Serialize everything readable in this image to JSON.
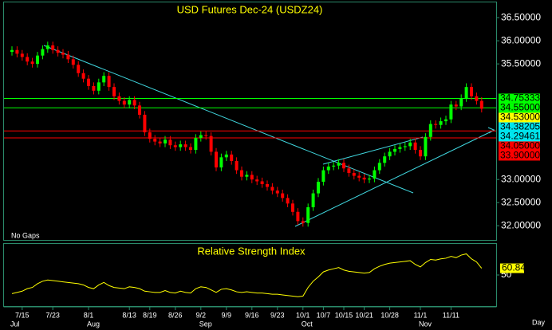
{
  "chart_data": {
    "type": "candlestick",
    "title": "USD Futures Dec-24 (USDZ24)",
    "note": "No Gaps",
    "x_unit": "Day",
    "categories": [
      null,
      null,
      "7/15",
      null,
      null,
      null,
      null,
      null,
      "7/23",
      null,
      null,
      null,
      null,
      null,
      null,
      "8/1",
      null,
      null,
      null,
      null,
      null,
      null,
      null,
      "8/13",
      null,
      null,
      null,
      "8/19",
      null,
      null,
      null,
      null,
      "8/26",
      null,
      null,
      null,
      null,
      "9/2",
      null,
      null,
      null,
      null,
      "9/9",
      null,
      null,
      null,
      null,
      "9/16",
      null,
      null,
      null,
      null,
      "9/23",
      null,
      null,
      null,
      null,
      "10/1",
      null,
      null,
      null,
      "10/7",
      null,
      null,
      null,
      "10/15",
      null,
      null,
      null,
      "10/21",
      null,
      null,
      null,
      null,
      "10/28",
      null,
      null,
      null,
      null,
      null,
      "11/1",
      null,
      null,
      null,
      null,
      null,
      "11/11",
      null,
      null,
      null,
      null,
      null,
      null
    ],
    "month_categories": [
      "Jul",
      null,
      null,
      null,
      null,
      null,
      null,
      null,
      null,
      null,
      null,
      null,
      null,
      null,
      null,
      "Aug",
      null,
      null,
      null,
      null,
      null,
      null,
      null,
      null,
      null,
      null,
      null,
      null,
      null,
      null,
      null,
      null,
      null,
      null,
      null,
      null,
      null,
      "Sep",
      null,
      null,
      null,
      null,
      null,
      null,
      null,
      null,
      null,
      null,
      null,
      null,
      null,
      null,
      null,
      null,
      null,
      null,
      null,
      "Oct",
      null,
      null,
      null,
      null,
      null,
      null,
      null,
      null,
      null,
      null,
      null,
      null,
      null,
      null,
      null,
      null,
      null,
      null,
      null,
      null,
      null,
      null,
      "Nov",
      null,
      null,
      null,
      null,
      null,
      null,
      null,
      null,
      null,
      null,
      null,
      null
    ],
    "open": [
      35.76,
      35.8,
      35.72,
      35.65,
      35.55,
      35.5,
      35.68,
      35.82,
      35.9,
      35.8,
      35.74,
      35.7,
      35.6,
      35.48,
      35.3,
      35.18,
      35.02,
      34.92,
      35.1,
      35.24,
      35.0,
      34.8,
      34.7,
      34.62,
      34.72,
      34.6,
      34.4,
      34.02,
      33.88,
      33.82,
      33.78,
      33.86,
      33.74,
      33.7,
      33.76,
      33.7,
      33.64,
      33.9,
      33.96,
      33.94,
      33.6,
      33.26,
      33.48,
      33.54,
      33.4,
      33.2,
      33.06,
      33.1,
      33.0,
      32.96,
      32.9,
      32.84,
      32.76,
      32.7,
      32.6,
      32.48,
      32.3,
      32.1,
      32.06,
      32.4,
      32.7,
      32.95,
      33.2,
      33.28,
      33.3,
      33.36,
      33.24,
      33.14,
      33.08,
      33.04,
      33.0,
      33.02,
      33.2,
      33.36,
      33.5,
      33.6,
      33.66,
      33.7,
      33.72,
      33.8,
      33.64,
      33.5,
      33.92,
      34.2,
      34.18,
      34.26,
      34.3,
      34.62,
      34.58,
      34.76,
      35.0,
      34.8,
      34.7
    ],
    "high": [
      35.88,
      35.88,
      35.8,
      35.73,
      35.63,
      35.76,
      35.9,
      35.98,
      35.98,
      35.88,
      35.82,
      35.78,
      35.68,
      35.56,
      35.38,
      35.26,
      35.1,
      35.18,
      35.32,
      35.32,
      35.08,
      34.88,
      34.78,
      34.8,
      34.8,
      34.68,
      34.48,
      34.1,
      33.96,
      33.9,
      33.94,
      33.94,
      33.82,
      33.84,
      33.84,
      33.78,
      33.98,
      34.04,
      34.04,
      34.02,
      33.68,
      33.56,
      33.62,
      33.62,
      33.48,
      33.28,
      33.18,
      33.18,
      33.08,
      33.04,
      32.98,
      32.92,
      32.84,
      32.78,
      32.68,
      32.56,
      32.38,
      32.18,
      32.48,
      32.78,
      33.03,
      33.28,
      33.36,
      33.38,
      33.44,
      33.44,
      33.32,
      33.22,
      33.16,
      33.12,
      33.1,
      33.28,
      33.44,
      33.58,
      33.68,
      33.74,
      33.78,
      33.8,
      33.88,
      33.88,
      33.72,
      34.0,
      34.28,
      34.28,
      34.34,
      34.38,
      34.7,
      34.7,
      34.84,
      35.08,
      35.08,
      34.88,
      34.78
    ],
    "low": [
      35.68,
      35.64,
      35.57,
      35.47,
      35.42,
      35.42,
      35.6,
      35.74,
      35.72,
      35.66,
      35.62,
      35.52,
      35.4,
      35.22,
      35.1,
      34.94,
      34.84,
      34.84,
      35.02,
      34.92,
      34.72,
      34.62,
      34.54,
      34.54,
      34.52,
      34.32,
      33.94,
      33.8,
      33.74,
      33.7,
      33.7,
      33.66,
      33.62,
      33.62,
      33.62,
      33.56,
      33.56,
      33.82,
      33.86,
      33.52,
      33.18,
      33.18,
      33.4,
      33.32,
      33.12,
      32.98,
      32.98,
      32.92,
      32.88,
      32.82,
      32.76,
      32.68,
      32.62,
      32.52,
      32.4,
      32.22,
      32.02,
      31.98,
      31.98,
      32.32,
      32.62,
      32.87,
      33.12,
      33.2,
      33.22,
      33.16,
      33.06,
      33.0,
      32.96,
      32.92,
      32.92,
      32.94,
      33.12,
      33.28,
      33.42,
      33.52,
      33.58,
      33.62,
      33.64,
      33.56,
      33.42,
      33.42,
      33.84,
      34.1,
      34.1,
      34.18,
      34.22,
      34.5,
      34.5,
      34.68,
      34.72,
      34.62,
      34.45
    ],
    "close": [
      35.8,
      35.72,
      35.65,
      35.55,
      35.5,
      35.68,
      35.82,
      35.9,
      35.8,
      35.74,
      35.7,
      35.6,
      35.48,
      35.3,
      35.18,
      35.02,
      34.92,
      35.1,
      35.24,
      35.0,
      34.8,
      34.7,
      34.62,
      34.72,
      34.6,
      34.4,
      34.02,
      33.88,
      33.82,
      33.78,
      33.86,
      33.74,
      33.7,
      33.76,
      33.7,
      33.64,
      33.9,
      33.96,
      33.94,
      33.6,
      33.26,
      33.48,
      33.54,
      33.4,
      33.2,
      33.06,
      33.1,
      33.0,
      32.96,
      32.9,
      32.84,
      32.76,
      32.7,
      32.6,
      32.48,
      32.3,
      32.1,
      32.06,
      32.4,
      32.7,
      32.95,
      33.2,
      33.28,
      33.3,
      33.36,
      33.24,
      33.14,
      33.08,
      33.04,
      33.0,
      33.02,
      33.2,
      33.36,
      33.5,
      33.6,
      33.66,
      33.7,
      33.72,
      33.8,
      33.64,
      33.5,
      33.92,
      34.2,
      34.18,
      34.26,
      34.3,
      34.62,
      34.58,
      34.76,
      35.0,
      34.8,
      34.7,
      34.53
    ],
    "up_color": "#00ff00",
    "down_color": "#ff0000",
    "ylim": [
      31.71,
      36.83
    ],
    "yticks": [
      {
        "value": 36.5,
        "label": "36.50000"
      },
      {
        "value": 36,
        "label": "36.00000"
      },
      {
        "value": 35.5,
        "label": "35.50000"
      },
      {
        "value": 33,
        "label": "33.00000"
      },
      {
        "value": 32.5,
        "label": "32.50000"
      },
      {
        "value": 32,
        "label": "32.00000"
      }
    ],
    "levels": [
      {
        "value": 34.75333,
        "label": "34.75333",
        "color": "#00ff00",
        "line": true
      },
      {
        "value": 34.55,
        "label": "34.55000",
        "color": "#00ff00",
        "line": true
      },
      {
        "value": 34.53,
        "label": "34.53000",
        "color": "#ffff00",
        "line": false
      },
      {
        "value": 34.38205,
        "label": "34.38205",
        "color": "#00e5ee",
        "line": false
      },
      {
        "value": 34.29461,
        "label": "34.29461",
        "color": "#00e5ee",
        "line": false
      },
      {
        "value": 34.05,
        "label": "34.05000",
        "color": "#ff0000",
        "line": true
      },
      {
        "value": 33.9,
        "label": "33.90000",
        "color": "#ff0000",
        "line": true
      }
    ],
    "indicator": {
      "title": "Relative Strength Index",
      "color": "#ffff00",
      "ylim": [
        0,
        100
      ],
      "yticks": [
        50
      ],
      "values": [
        20,
        22,
        24,
        28,
        30,
        36,
        40,
        42,
        41,
        40,
        39,
        38,
        37,
        36,
        34,
        30,
        28,
        34,
        38,
        33,
        30,
        29,
        28,
        31,
        30,
        28,
        24,
        23,
        22,
        22,
        25,
        22,
        21,
        24,
        22,
        21,
        28,
        31,
        30,
        26,
        22,
        27,
        28,
        26,
        23,
        22,
        23,
        22,
        21,
        21,
        20,
        19,
        19,
        18,
        17,
        16,
        15,
        16,
        30,
        40,
        47,
        55,
        58,
        60,
        62,
        58,
        56,
        55,
        54,
        53,
        54,
        60,
        64,
        67,
        69,
        70,
        71,
        72,
        73,
        67,
        63,
        70,
        75,
        74,
        76,
        77,
        80,
        78,
        82,
        84,
        76,
        71,
        60.84
      ],
      "last_value_label": "60.84"
    }
  }
}
